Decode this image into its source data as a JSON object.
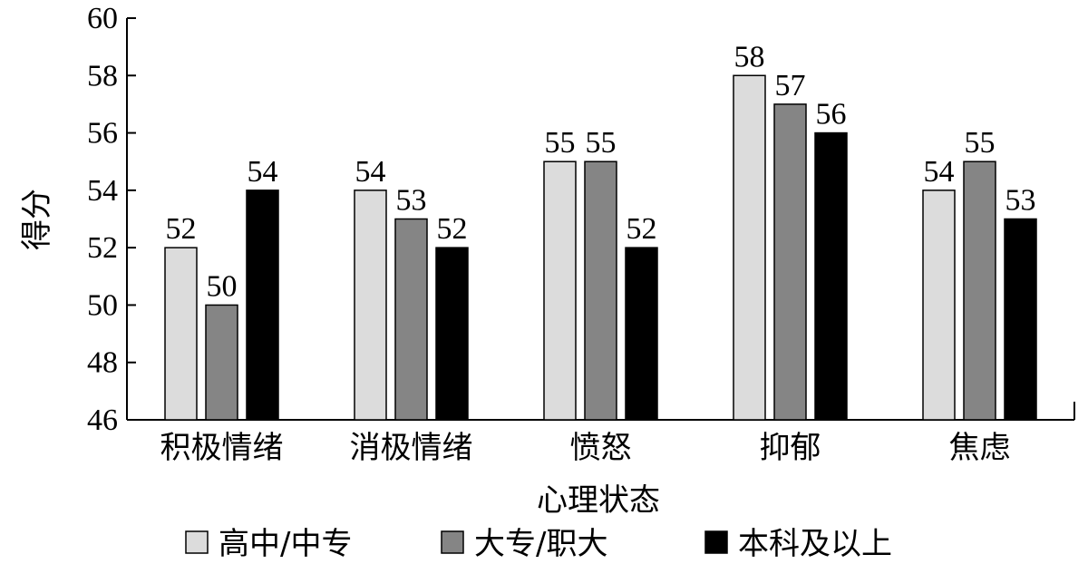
{
  "chart_data": {
    "type": "bar",
    "title": "",
    "xlabel": "心理状态",
    "ylabel": "得分",
    "ylim": [
      46,
      60
    ],
    "yticks": [
      46,
      48,
      50,
      52,
      54,
      56,
      58,
      60
    ],
    "categories": [
      "积极情绪",
      "消极情绪",
      "愤怒",
      "抑郁",
      "焦虑"
    ],
    "series": [
      {
        "name": "高中/中专",
        "color": "#dcdcdc",
        "values": [
          52,
          54,
          55,
          58,
          54
        ]
      },
      {
        "name": "大专/职大",
        "color": "#858585",
        "values": [
          50,
          53,
          55,
          57,
          55
        ]
      },
      {
        "name": "本科及以上",
        "color": "#000000",
        "values": [
          54,
          52,
          52,
          56,
          53
        ]
      }
    ],
    "legend_position": "bottom",
    "grid": false
  }
}
